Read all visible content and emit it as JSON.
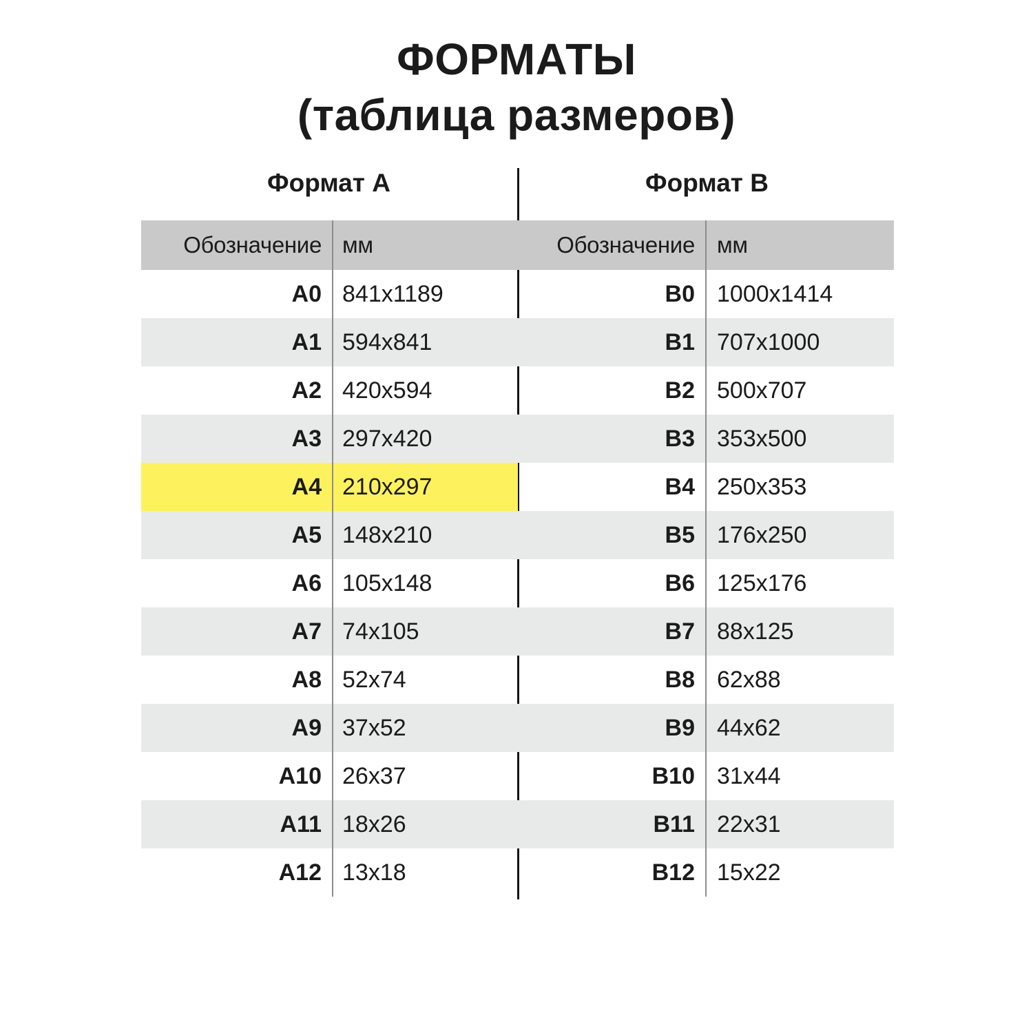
{
  "title": "ФОРМАТЫ",
  "subtitle": "(таблица размеров)",
  "colors": {
    "header_bg": "#c9c9c9",
    "alt_row_bg": "#e8eaea",
    "highlight_bg": "#fdf25e",
    "divider_line": "#151515",
    "column_separator": "#8c8c8c",
    "text": "#1b1b1b"
  },
  "tables": [
    {
      "id": "format-a",
      "heading": "Формат А",
      "columns": {
        "designation": "Обозначение",
        "mm": "мм"
      },
      "rows": [
        {
          "label": "A0",
          "size": "841x1189",
          "highlight": false
        },
        {
          "label": "A1",
          "size": "594x841",
          "highlight": false
        },
        {
          "label": "A2",
          "size": "420x594",
          "highlight": false
        },
        {
          "label": "A3",
          "size": "297x420",
          "highlight": false
        },
        {
          "label": "A4",
          "size": "210x297",
          "highlight": true
        },
        {
          "label": "A5",
          "size": "148x210",
          "highlight": false
        },
        {
          "label": "A6",
          "size": "105x148",
          "highlight": false
        },
        {
          "label": "A7",
          "size": "74x105",
          "highlight": false
        },
        {
          "label": "A8",
          "size": "52x74",
          "highlight": false
        },
        {
          "label": "A9",
          "size": "37x52",
          "highlight": false
        },
        {
          "label": "A10",
          "size": "26x37",
          "highlight": false
        },
        {
          "label": "A11",
          "size": "18x26",
          "highlight": false
        },
        {
          "label": "A12",
          "size": "13x18",
          "highlight": false
        }
      ]
    },
    {
      "id": "format-b",
      "heading": "Формат B",
      "columns": {
        "designation": "Обозначение",
        "mm": "мм"
      },
      "rows": [
        {
          "label": "B0",
          "size": "1000x1414",
          "highlight": false
        },
        {
          "label": "B1",
          "size": "707x1000",
          "highlight": false
        },
        {
          "label": "B2",
          "size": "500x707",
          "highlight": false
        },
        {
          "label": "B3",
          "size": "353x500",
          "highlight": false
        },
        {
          "label": "B4",
          "size": "250x353",
          "highlight": false
        },
        {
          "label": "B5",
          "size": "176x250",
          "highlight": false
        },
        {
          "label": "B6",
          "size": "125x176",
          "highlight": false
        },
        {
          "label": "B7",
          "size": "88x125",
          "highlight": false
        },
        {
          "label": "B8",
          "size": "62x88",
          "highlight": false
        },
        {
          "label": "B9",
          "size": "44x62",
          "highlight": false
        },
        {
          "label": "B10",
          "size": "31x44",
          "highlight": false
        },
        {
          "label": "B11",
          "size": "22x31",
          "highlight": false
        },
        {
          "label": "B12",
          "size": "15x22",
          "highlight": false
        }
      ]
    }
  ]
}
